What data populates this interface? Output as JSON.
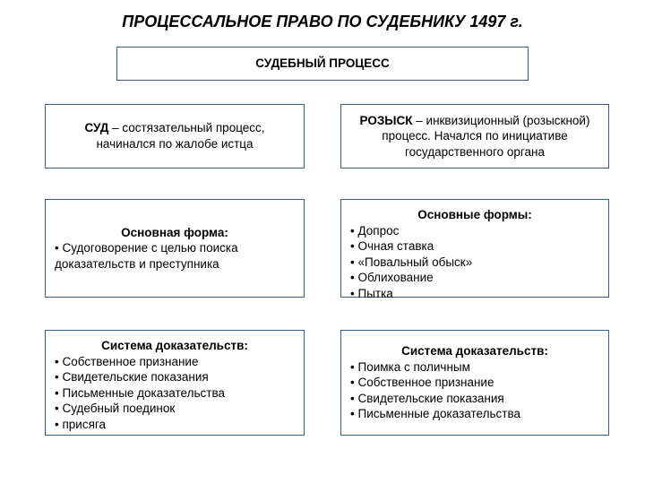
{
  "layout": {
    "border_color": "#385d8a",
    "background": "#ffffff",
    "font_family": "Arial",
    "title_fontsize": 18,
    "box_fontsize": 13.5
  },
  "title": "ПРОЦЕССАЛЬНОЕ ПРАВО ПО СУДЕБНИКУ 1497 г.",
  "header": "СУДЕБНЫЙ ПРОЦЕСС",
  "left": {
    "top": {
      "bold": "СУД",
      "rest": " – состязательный процесс, начинался по жалобе истца"
    },
    "mid": {
      "heading": "Основная форма:",
      "items": [
        "Судоговорение с целью поиска доказательств и преступника"
      ]
    },
    "bot": {
      "heading": "Система доказательств:",
      "items": [
        "Собственное признание",
        "Свидетельские показания",
        "Письменные доказательства",
        "Судебный поединок",
        "присяга"
      ]
    }
  },
  "right": {
    "top": {
      "bold": "РОЗЫСК",
      "rest": " – инквизиционный (розыскной) процесс. Начался по инициативе государственного органа"
    },
    "mid": {
      "heading": "Основные формы:",
      "items": [
        "Допрос",
        "Очная ставка",
        "«Повальный обыск»",
        "Облихование",
        "Пытка"
      ]
    },
    "bot": {
      "heading": "Система доказательств:",
      "items": [
        "Поимка с поличным",
        "Собственное признание",
        "Свидетельские показания",
        "Письменные доказательства"
      ]
    }
  }
}
